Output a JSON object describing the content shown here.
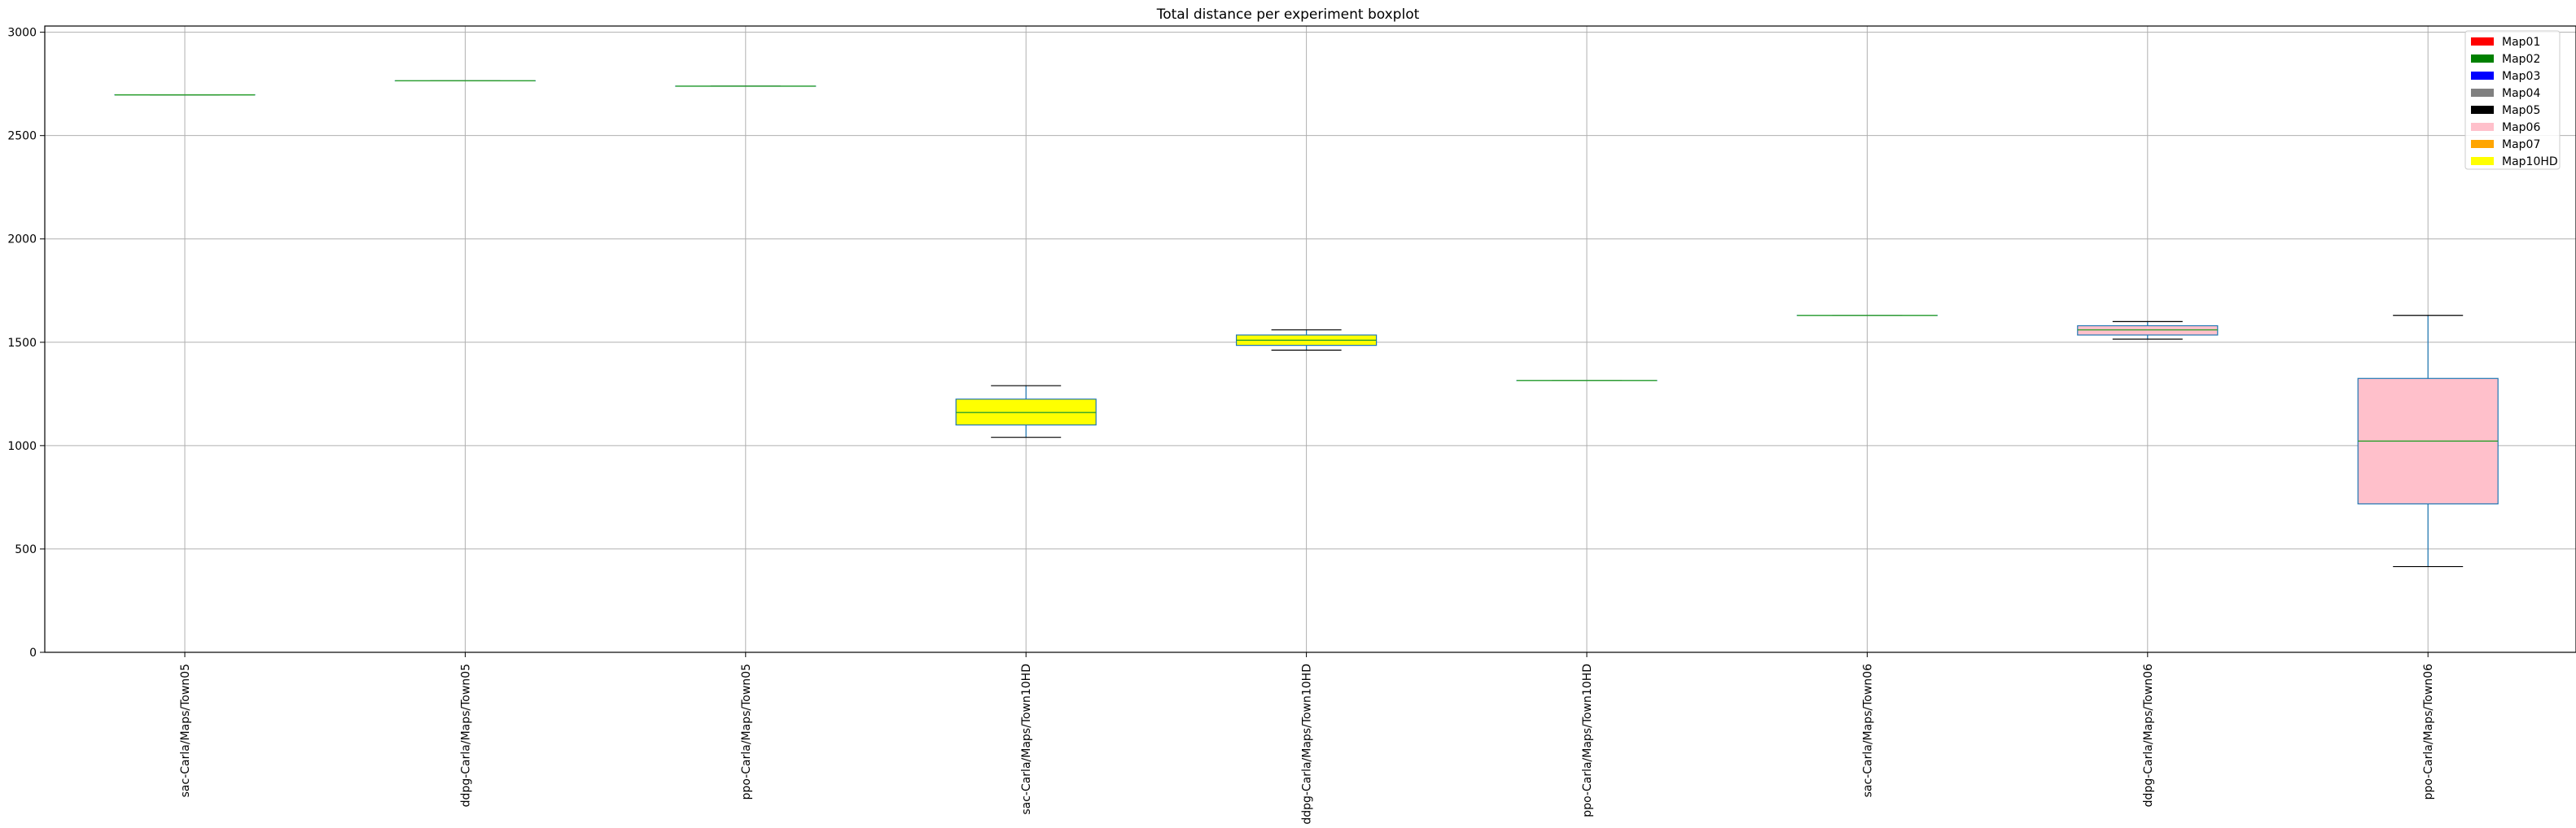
{
  "chart_data": {
    "type": "box",
    "title": "Total distance per experiment boxplot",
    "xlabel": "",
    "ylabel": "",
    "ylim": [
      0,
      3030
    ],
    "yticks": [
      0,
      500,
      1000,
      1500,
      2000,
      2500,
      3000
    ],
    "grid": true,
    "legend_placement": "top-right",
    "legend": [
      {
        "label": "Map01",
        "color": "#ff0000"
      },
      {
        "label": "Map02",
        "color": "#008000"
      },
      {
        "label": "Map03",
        "color": "#0000ff"
      },
      {
        "label": "Map04",
        "color": "#808080"
      },
      {
        "label": "Map05",
        "color": "#000000"
      },
      {
        "label": "Map06",
        "color": "#ffc0cb"
      },
      {
        "label": "Map07",
        "color": "#ffa500"
      },
      {
        "label": "Map10HD",
        "color": "#ffff00"
      }
    ],
    "categories": [
      "sac-Carla/Maps/Town05",
      "ddpg-Carla/Maps/Town05",
      "ppo-Carla/Maps/Town05",
      "sac-Carla/Maps/Town10HD",
      "ddpg-Carla/Maps/Town10HD",
      "ppo-Carla/Maps/Town10HD",
      "sac-Carla/Maps/Town06",
      "ddpg-Carla/Maps/Town06",
      "ppo-Carla/Maps/Town06"
    ],
    "boxes": [
      {
        "whislo": 2697,
        "q1": 2697,
        "med": 2697,
        "q3": 2697,
        "whishi": 2697,
        "color": "#ffffff"
      },
      {
        "whislo": 2765,
        "q1": 2765,
        "med": 2765,
        "q3": 2765,
        "whishi": 2765,
        "color": "#ffffff"
      },
      {
        "whislo": 2739,
        "q1": 2739,
        "med": 2739,
        "q3": 2739,
        "whishi": 2739,
        "color": "#ffffff"
      },
      {
        "whislo": 1040,
        "q1": 1100,
        "med": 1160,
        "q3": 1225,
        "whishi": 1290,
        "color": "#ffff00"
      },
      {
        "whislo": 1462,
        "q1": 1485,
        "med": 1510,
        "q3": 1535,
        "whishi": 1560,
        "color": "#ffff00"
      },
      {
        "whislo": 1315,
        "q1": 1315,
        "med": 1315,
        "q3": 1315,
        "whishi": 1315,
        "color": "#ffffff"
      },
      {
        "whislo": 1630,
        "q1": 1630,
        "med": 1630,
        "q3": 1630,
        "whishi": 1630,
        "color": "#ffffff"
      },
      {
        "whislo": 1515,
        "q1": 1535,
        "med": 1560,
        "q3": 1580,
        "whishi": 1600,
        "color": "#ffc0cb"
      },
      {
        "whislo": 415,
        "q1": 718,
        "med": 1022,
        "q3": 1325,
        "whishi": 1630,
        "color": "#ffc0cb"
      }
    ]
  }
}
